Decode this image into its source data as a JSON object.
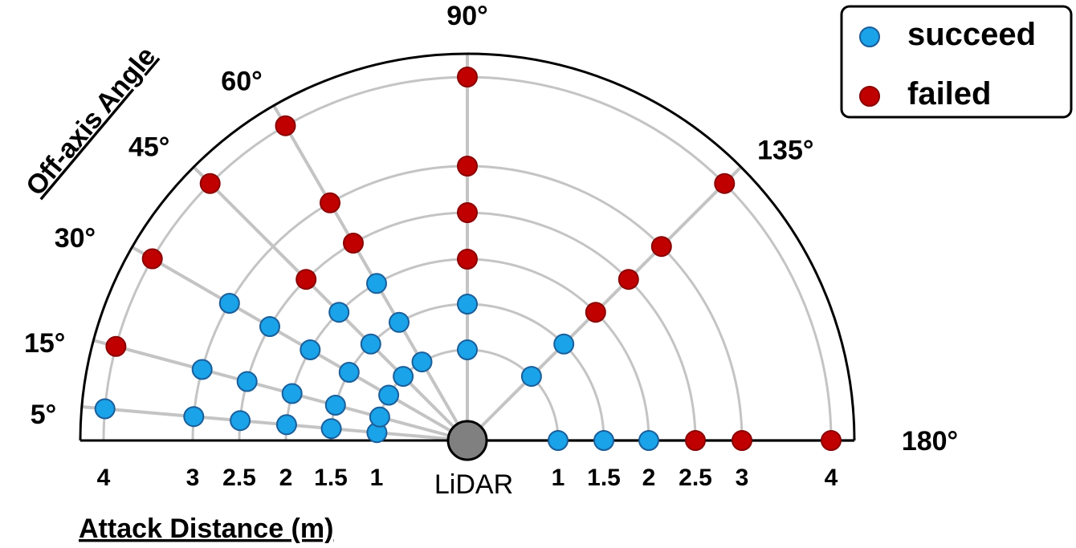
{
  "chart_data": {
    "type": "scatter",
    "coordinate_system": "polar-half",
    "xlabel": "Attack Distance (m)",
    "ylabel": "Off-axis Angle",
    "origin_label": "LiDAR",
    "distance_ticks_left": [
      "4",
      "3",
      "2.5",
      "2",
      "1.5",
      "1"
    ],
    "distance_ticks_right": [
      "1",
      "1.5",
      "2",
      "2.5",
      "3",
      "4"
    ],
    "angle_labels": [
      "5°",
      "15°",
      "30°",
      "45°",
      "60°",
      "90°",
      "135°",
      "180°"
    ],
    "rings_m": [
      1,
      1.5,
      2,
      2.5,
      3,
      4
    ],
    "rays_deg": [
      5,
      15,
      30,
      45,
      60,
      90,
      135,
      180
    ],
    "legend": {
      "placement": "top-right",
      "entries": [
        {
          "name": "succeed",
          "color": "#1aa3e8"
        },
        {
          "name": "failed",
          "color": "#c00000"
        }
      ]
    },
    "series": [
      {
        "name": "succeed",
        "color": "#1aa3e8",
        "points": [
          {
            "angle": 5,
            "distance": 1
          },
          {
            "angle": 5,
            "distance": 1.5
          },
          {
            "angle": 5,
            "distance": 2
          },
          {
            "angle": 5,
            "distance": 2.5
          },
          {
            "angle": 5,
            "distance": 3
          },
          {
            "angle": 5,
            "distance": 4
          },
          {
            "angle": 15,
            "distance": 1
          },
          {
            "angle": 15,
            "distance": 1.5
          },
          {
            "angle": 15,
            "distance": 2
          },
          {
            "angle": 15,
            "distance": 2.5
          },
          {
            "angle": 15,
            "distance": 3
          },
          {
            "angle": 30,
            "distance": 1
          },
          {
            "angle": 30,
            "distance": 1.5
          },
          {
            "angle": 30,
            "distance": 2
          },
          {
            "angle": 30,
            "distance": 2.5
          },
          {
            "angle": 30,
            "distance": 3
          },
          {
            "angle": 45,
            "distance": 1
          },
          {
            "angle": 45,
            "distance": 1.5
          },
          {
            "angle": 45,
            "distance": 2
          },
          {
            "angle": 60,
            "distance": 1
          },
          {
            "angle": 60,
            "distance": 1.5
          },
          {
            "angle": 60,
            "distance": 2
          },
          {
            "angle": 90,
            "distance": 1
          },
          {
            "angle": 90,
            "distance": 1.5
          },
          {
            "angle": 135,
            "distance": 1
          },
          {
            "angle": 135,
            "distance": 1.5
          },
          {
            "angle": 180,
            "distance": 1
          },
          {
            "angle": 180,
            "distance": 1.5
          },
          {
            "angle": 180,
            "distance": 2
          }
        ]
      },
      {
        "name": "failed",
        "color": "#c00000",
        "points": [
          {
            "angle": 15,
            "distance": 4
          },
          {
            "angle": 30,
            "distance": 4
          },
          {
            "angle": 45,
            "distance": 2.5
          },
          {
            "angle": 45,
            "distance": 4
          },
          {
            "angle": 60,
            "distance": 2.5
          },
          {
            "angle": 60,
            "distance": 3
          },
          {
            "angle": 60,
            "distance": 4
          },
          {
            "angle": 90,
            "distance": 2
          },
          {
            "angle": 90,
            "distance": 2.5
          },
          {
            "angle": 90,
            "distance": 3
          },
          {
            "angle": 90,
            "distance": 4
          },
          {
            "angle": 135,
            "distance": 2
          },
          {
            "angle": 135,
            "distance": 2.5
          },
          {
            "angle": 135,
            "distance": 3
          },
          {
            "angle": 135,
            "distance": 4
          },
          {
            "angle": 180,
            "distance": 2.5
          },
          {
            "angle": 180,
            "distance": 3
          },
          {
            "angle": 180,
            "distance": 4
          }
        ]
      }
    ]
  }
}
